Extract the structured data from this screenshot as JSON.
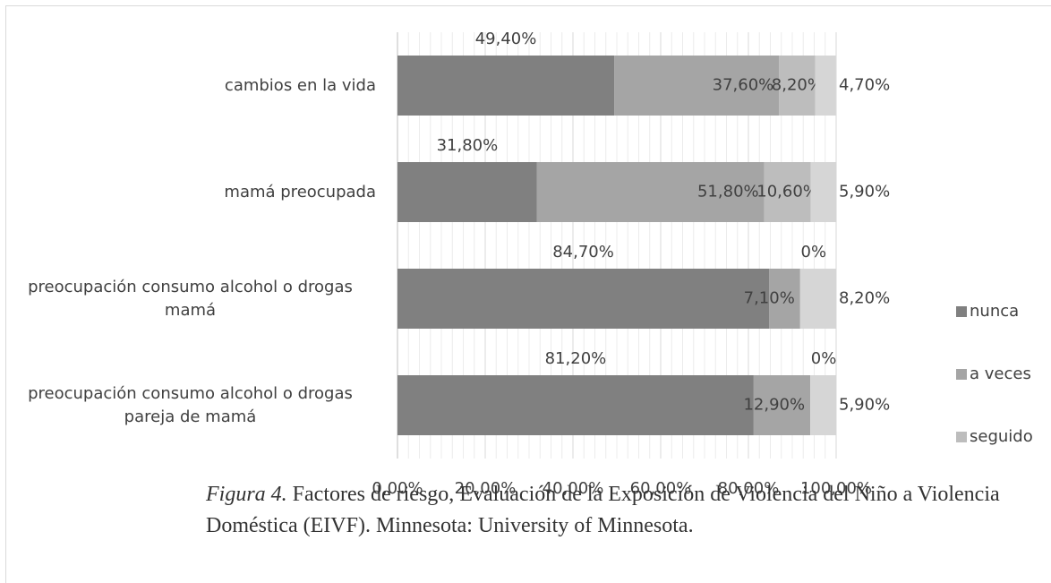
{
  "chart_data": {
    "type": "stacked_barh",
    "categories": [
      "cambios en la vida",
      "mamá preocupada",
      "preocupación consumo alcohol o drogas mamá",
      "preocupación consumo alcohol o drogas pareja de mamá"
    ],
    "series": [
      {
        "name": "nunca",
        "color": "#808080",
        "values": [
          49.4,
          31.8,
          84.7,
          81.2
        ],
        "value_labels": [
          "49,40%",
          "31,80%",
          "84,70%",
          "81,20%"
        ]
      },
      {
        "name": "a veces",
        "color": "#a5a5a5",
        "values": [
          37.6,
          51.8,
          7.1,
          12.9
        ],
        "value_labels": [
          "37,60%",
          "51,80%",
          "7,10%",
          "12,90%"
        ]
      },
      {
        "name": "seguido",
        "color": "#bdbdbd",
        "values": [
          8.2,
          10.6,
          0,
          0
        ],
        "value_labels": [
          "8,20%",
          "10,60%",
          "0%",
          "0%"
        ]
      },
      {
        "color": "#d6d6d6",
        "values": [
          4.7,
          5.9,
          8.2,
          5.9
        ],
        "value_labels": [
          "4,70%",
          "5,90%",
          "8,20%",
          "5,90%"
        ]
      }
    ],
    "xlim": [
      0,
      100
    ],
    "xticks": [
      {
        "value": 0,
        "label": "0,00%"
      },
      {
        "value": 20,
        "label": "20,00%"
      },
      {
        "value": 40,
        "label": "40,00%"
      },
      {
        "value": 60,
        "label": "60,00%"
      },
      {
        "value": 80,
        "label": "80,00%"
      },
      {
        "value": 100,
        "label": "100,00%"
      }
    ],
    "grid": true,
    "legend": "right",
    "caption_label": "Figura 4.",
    "caption": "Factores de riesgo, Evaluación de la Exposición de Violencia del Niño a Violencia Doméstica (EIVF). Minnesota: University of Minnesota."
  }
}
